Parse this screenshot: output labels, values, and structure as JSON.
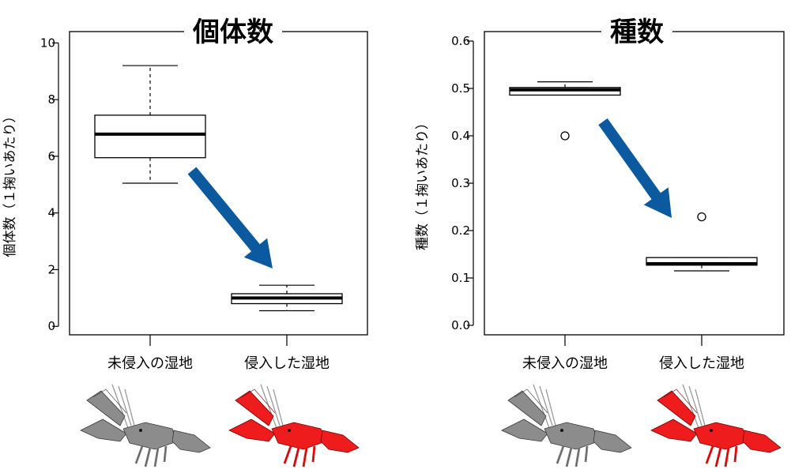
{
  "chart_data": [
    {
      "type": "box",
      "title": "個体数",
      "xlabel": "",
      "ylabel": "個体数（１掬いあたり）",
      "ylim": [
        -0.3,
        10.4
      ],
      "yticks": [
        0,
        2,
        4,
        6,
        8,
        10
      ],
      "ytick_labels": [
        "0",
        "2",
        "4",
        "6",
        "8",
        "10"
      ],
      "categories": [
        "未侵入の湿地",
        "侵入した湿地"
      ],
      "boxes": [
        {
          "category": "未侵入の湿地",
          "whisker_low": 5.05,
          "q1": 5.95,
          "median": 6.78,
          "q3": 7.45,
          "whisker_high": 9.2,
          "outliers": []
        },
        {
          "category": "侵入した湿地",
          "whisker_low": 0.55,
          "q1": 0.8,
          "median": 1.0,
          "q3": 1.15,
          "whisker_high": 1.45,
          "outliers": []
        }
      ],
      "arrow_color": "#0b5aa0",
      "crayfish_colors": [
        "#8c8c8c",
        "#ee1c1c"
      ]
    },
    {
      "type": "box",
      "title": "種数",
      "xlabel": "",
      "ylabel": "種数（１掬いあたり）",
      "ylim": [
        -0.02,
        0.62
      ],
      "yticks": [
        0.0,
        0.1,
        0.2,
        0.3,
        0.4,
        0.5,
        0.6
      ],
      "ytick_labels": [
        "0.0",
        "0.1",
        "0.2",
        "0.3",
        "0.4",
        "0.5",
        "0.6"
      ],
      "categories": [
        "未侵入の湿地",
        "侵入した湿地"
      ],
      "boxes": [
        {
          "category": "未侵入の湿地",
          "whisker_low": 0.486,
          "q1": 0.486,
          "median": 0.497,
          "q3": 0.502,
          "whisker_high": 0.514,
          "outliers": [
            0.4
          ]
        },
        {
          "category": "侵入した湿地",
          "whisker_low": 0.115,
          "q1": 0.127,
          "median": 0.13,
          "q3": 0.143,
          "whisker_high": 0.143,
          "outliers": [
            0.229
          ]
        }
      ],
      "arrow_color": "#0b5aa0",
      "crayfish_colors": [
        "#8c8c8c",
        "#ee1c1c"
      ]
    }
  ]
}
